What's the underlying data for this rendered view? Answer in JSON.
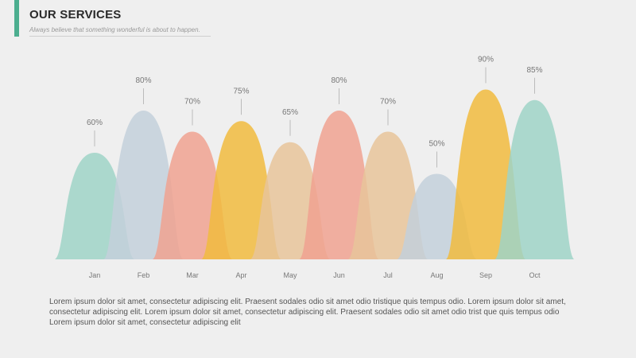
{
  "header": {
    "title": "OUR SERVICES",
    "subtitle": "Always believe that something wonderful is about to happen."
  },
  "chart_data": {
    "type": "area",
    "categories": [
      "Jan",
      "Feb",
      "Mar",
      "Apr",
      "May",
      "Jun",
      "Jul",
      "Aug",
      "Sep",
      "Oct"
    ],
    "values": [
      60,
      80,
      70,
      75,
      65,
      80,
      70,
      50,
      90,
      85
    ],
    "value_labels": [
      "60%",
      "80%",
      "70%",
      "75%",
      "65%",
      "80%",
      "70%",
      "50%",
      "90%",
      "85%"
    ],
    "colors": [
      "#9fd3c7",
      "#c3d0da",
      "#f0a291",
      "#f1bb3e",
      "#e7c49a",
      "#f0a291",
      "#e7c49a",
      "#c3d0da",
      "#f1bb3e",
      "#9fd3c7"
    ],
    "title": "",
    "xlabel": "",
    "ylabel": "",
    "ylim": [
      0,
      100
    ],
    "grid": false,
    "legend": "none"
  },
  "body": {
    "text": "Lorem ipsum dolor sit amet, consectetur adipiscing elit. Praesent sodales odio sit amet odio tristique quis tempus odio. Lorem ipsum dolor sit amet, consectetur adipiscing elit. Lorem ipsum dolor sit amet, consectetur adipiscing elit. Praesent sodales odio sit amet odio trist que quis tempus odio Lorem ipsum dolor sit amet, consectetur adipiscing elit"
  }
}
